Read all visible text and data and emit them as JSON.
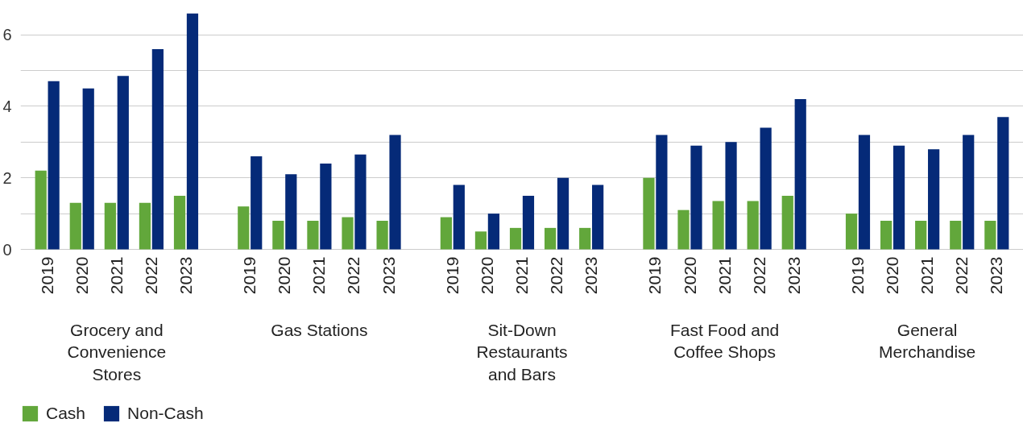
{
  "chart_data": {
    "type": "bar",
    "categories": [
      "2019",
      "2020",
      "2021",
      "2022",
      "2023",
      "2019",
      "2020",
      "2021",
      "2022",
      "2023",
      "2019",
      "2020",
      "2021",
      "2022",
      "2023",
      "2019",
      "2020",
      "2021",
      "2022",
      "2023",
      "2019",
      "2020",
      "2021",
      "2022",
      "2023"
    ],
    "annotations": [
      "Grocery and\nConvenience\nStores",
      "Gas Stations",
      "Sit-Down\nRestaurants\nand Bars",
      "Fast Food and\nCoffee Shops",
      "General\nMerchandise"
    ],
    "series": [
      {
        "name": "Cash",
        "color": "#62a73b",
        "values": [
          2.2,
          1.3,
          1.3,
          1.3,
          1.5,
          1.2,
          0.8,
          0.8,
          0.9,
          0.8,
          0.9,
          0.5,
          0.6,
          0.6,
          0.6,
          2.0,
          1.1,
          1.35,
          1.35,
          1.5,
          1.0,
          0.8,
          0.8,
          0.8,
          0.8
        ]
      },
      {
        "name": "Non-Cash",
        "color": "#052a78",
        "values": [
          4.7,
          4.5,
          4.85,
          5.6,
          6.6,
          2.6,
          2.1,
          2.4,
          2.65,
          3.2,
          1.8,
          1.0,
          1.5,
          2.0,
          1.8,
          3.2,
          2.9,
          3.0,
          3.4,
          4.2,
          3.2,
          2.9,
          2.8,
          3.2,
          3.7
        ]
      }
    ],
    "yticks": [
      0,
      {
        "value": 1,
        "label": null
      },
      2,
      {
        "value": 3,
        "label": null
      },
      4,
      {
        "value": 5,
        "label": null
      },
      6
    ],
    "ylim": [
      0,
      6.6
    ],
    "grid": "y",
    "legend": "bottom left"
  }
}
